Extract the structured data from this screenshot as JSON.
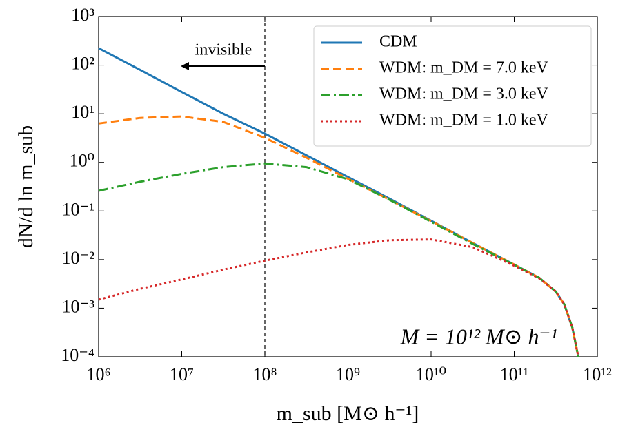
{
  "chart_data": {
    "type": "line",
    "xlabel": "m_sub [M⊙ h⁻¹]",
    "ylabel": "dN/d ln m_sub",
    "annotations": {
      "invisible": "invisible",
      "mass": "M = 10¹² M⊙ h⁻¹"
    },
    "vline": 100000000,
    "xscale": "log",
    "yscale": "log",
    "x": [
      1000000.0,
      3160000.0,
      10000000.0,
      31600000.0,
      100000000.0,
      316000000.0,
      1000000000.0,
      3160000000.0,
      10000000000.0,
      31600000000.0,
      100000000000.0,
      200000000000.0,
      316000000000.0,
      400000000000.0,
      500000000000.0,
      590000000000.0
    ],
    "series": [
      {
        "name": "CDM",
        "color": "#1f77b4",
        "dash": "solid",
        "values": [
          224,
          80,
          28,
          10,
          3.9,
          1.4,
          0.5,
          0.18,
          0.063,
          0.022,
          0.0079,
          0.0042,
          0.0022,
          0.0012,
          0.0004,
          0.0001
        ]
      },
      {
        "name": "WDM: m_DM = 7.0 keV",
        "color": "#ff7f0e",
        "dash": "dashed",
        "values": [
          6.3,
          8.2,
          8.8,
          6.8,
          3.2,
          1.25,
          0.46,
          0.17,
          0.062,
          0.022,
          0.0079,
          0.0042,
          0.0022,
          0.0012,
          0.0004,
          0.0001
        ]
      },
      {
        "name": "WDM: m_DM = 3.0 keV",
        "color": "#2ca02c",
        "dash": "dashdot",
        "values": [
          0.26,
          0.4,
          0.58,
          0.8,
          0.95,
          0.8,
          0.45,
          0.17,
          0.06,
          0.021,
          0.0078,
          0.0042,
          0.0022,
          0.0012,
          0.0004,
          0.0001
        ]
      },
      {
        "name": "WDM: m_DM = 1.0 keV",
        "color": "#d62728",
        "dash": "dotted",
        "values": [
          0.0015,
          0.0025,
          0.0039,
          0.0062,
          0.0095,
          0.014,
          0.02,
          0.025,
          0.026,
          0.018,
          0.0075,
          0.0041,
          0.0022,
          0.0012,
          0.0004,
          0.0001
        ]
      }
    ],
    "xlim": [
      1000000.0,
      1000000000000.0
    ],
    "ylim": [
      0.0001,
      1000.0
    ],
    "xticks": [
      {
        "value": 1000000.0,
        "label": "10⁶"
      },
      {
        "value": 10000000.0,
        "label": "10⁷"
      },
      {
        "value": 100000000.0,
        "label": "10⁸"
      },
      {
        "value": 1000000000.0,
        "label": "10⁹"
      },
      {
        "value": 10000000000.0,
        "label": "10¹⁰"
      },
      {
        "value": 100000000000.0,
        "label": "10¹¹"
      },
      {
        "value": 1000000000000.0,
        "label": "10¹²"
      }
    ],
    "yticks": [
      {
        "value": 0.0001,
        "label": "10⁻⁴"
      },
      {
        "value": 0.001,
        "label": "10⁻³"
      },
      {
        "value": 0.01,
        "label": "10⁻²"
      },
      {
        "value": 0.1,
        "label": "10⁻¹"
      },
      {
        "value": 1,
        "label": "10⁰"
      },
      {
        "value": 10,
        "label": "10¹"
      },
      {
        "value": 100,
        "label": "10²"
      },
      {
        "value": 1000,
        "label": "10³"
      }
    ],
    "grid": false,
    "legend": "upper right"
  }
}
